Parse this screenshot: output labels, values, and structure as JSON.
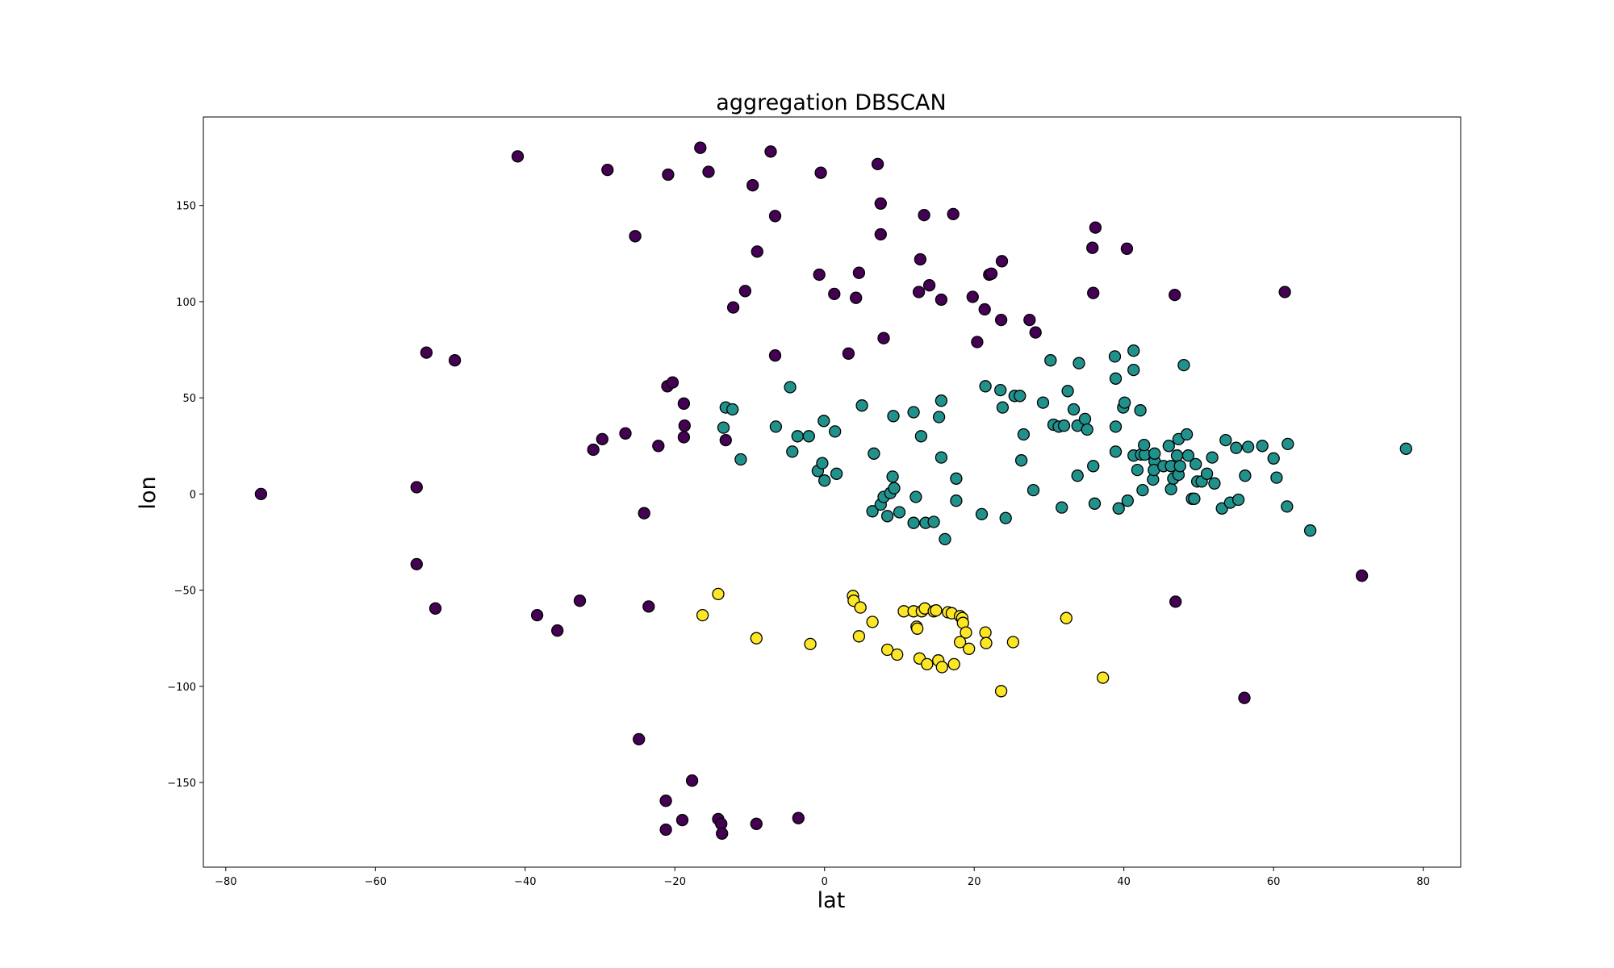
{
  "chart_data": {
    "type": "scatter",
    "title": "aggregation DBSCAN",
    "xlabel": "lat",
    "ylabel": "lon",
    "xlim": [
      -83,
      85
    ],
    "ylim": [
      -194,
      196
    ],
    "xticks": [
      -80,
      -60,
      -40,
      -20,
      0,
      20,
      40,
      60,
      80
    ],
    "yticks": [
      -150,
      -100,
      -50,
      0,
      50,
      100,
      150
    ],
    "grid": false,
    "legend": "none",
    "series": [
      {
        "color": "#440154",
        "points": [
          [
            -75.3,
            0
          ],
          [
            -54.5,
            3.5
          ],
          [
            -54.5,
            -36.5
          ],
          [
            -53.2,
            73.5
          ],
          [
            -52,
            -59.5
          ],
          [
            -49.4,
            69.5
          ],
          [
            -41,
            175.5
          ],
          [
            -38.4,
            -63
          ],
          [
            -35.7,
            -71
          ],
          [
            -32.7,
            -55.5
          ],
          [
            -30.9,
            23
          ],
          [
            -29.7,
            28.5
          ],
          [
            -29,
            168.5
          ],
          [
            -26.6,
            31.5
          ],
          [
            -25.3,
            134
          ],
          [
            -24.8,
            -127.5
          ],
          [
            -24.1,
            -10
          ],
          [
            -23.5,
            -58.5
          ],
          [
            -22.2,
            25
          ],
          [
            -21.2,
            -174.5
          ],
          [
            -21.2,
            -159.5
          ],
          [
            -21,
            56
          ],
          [
            -20.9,
            166
          ],
          [
            -20.3,
            58
          ],
          [
            -19,
            -169.5
          ],
          [
            -18.8,
            47
          ],
          [
            -18.8,
            29.5
          ],
          [
            -18.7,
            35.5
          ],
          [
            -17.7,
            -149
          ],
          [
            -16.6,
            180
          ],
          [
            -15.5,
            167.5
          ],
          [
            -14.2,
            -169
          ],
          [
            -13.8,
            -171.5
          ],
          [
            -13.7,
            -176.5
          ],
          [
            -13.2,
            28
          ],
          [
            -12.2,
            97
          ],
          [
            -10.6,
            105.5
          ],
          [
            -9.6,
            160.5
          ],
          [
            -9,
            126
          ],
          [
            -9.1,
            -171.5
          ],
          [
            -7.2,
            178
          ],
          [
            -6.6,
            144.5
          ],
          [
            -6.6,
            72
          ],
          [
            -3.5,
            -168.5
          ],
          [
            -0.7,
            114
          ],
          [
            -0.5,
            167
          ],
          [
            1.3,
            104
          ],
          [
            3.2,
            73
          ],
          [
            4.2,
            102
          ],
          [
            4.6,
            115
          ],
          [
            7.1,
            171.5
          ],
          [
            7.5,
            151
          ],
          [
            7.5,
            135
          ],
          [
            7.9,
            81
          ],
          [
            12.6,
            105
          ],
          [
            12.8,
            122
          ],
          [
            13.3,
            145
          ],
          [
            14,
            108.5
          ],
          [
            15.6,
            101
          ],
          [
            17.2,
            145.5
          ],
          [
            19.8,
            102.5
          ],
          [
            20.4,
            79
          ],
          [
            21.4,
            96
          ],
          [
            22,
            114
          ],
          [
            22.3,
            114.5
          ],
          [
            23.6,
            90.5
          ],
          [
            23.7,
            121
          ],
          [
            27.4,
            90.5
          ],
          [
            28.2,
            84
          ],
          [
            35.8,
            128
          ],
          [
            35.9,
            104.5
          ],
          [
            36.2,
            138.5
          ],
          [
            40.4,
            127.5
          ],
          [
            46.8,
            103.5
          ],
          [
            46.9,
            -56
          ],
          [
            56.1,
            -106
          ],
          [
            61.5,
            105
          ],
          [
            71.8,
            -42.5
          ]
        ]
      },
      {
        "color": "#21918c",
        "points": [
          [
            -13.2,
            45
          ],
          [
            -12.3,
            44
          ],
          [
            -13.5,
            34.5
          ],
          [
            -11.2,
            18
          ],
          [
            -6.5,
            35
          ],
          [
            -4.6,
            55.5
          ],
          [
            -4.3,
            22
          ],
          [
            -3.6,
            30
          ],
          [
            -2.1,
            30
          ],
          [
            -0.9,
            12
          ],
          [
            -0.3,
            16
          ],
          [
            0,
            7
          ],
          [
            -0.1,
            38
          ],
          [
            1.4,
            32.5
          ],
          [
            1.6,
            10.5
          ],
          [
            5,
            46
          ],
          [
            6.4,
            -9
          ],
          [
            6.6,
            21
          ],
          [
            7.5,
            -5.5
          ],
          [
            7.9,
            -1.5
          ],
          [
            8.4,
            -11.5
          ],
          [
            8.8,
            0.5
          ],
          [
            9.1,
            9
          ],
          [
            9.3,
            3
          ],
          [
            9.2,
            40.5
          ],
          [
            10,
            -9.5
          ],
          [
            11.9,
            -15
          ],
          [
            11.9,
            42.5
          ],
          [
            12.2,
            -1.5
          ],
          [
            12.9,
            30
          ],
          [
            13.5,
            -15
          ],
          [
            14.6,
            -14.5
          ],
          [
            15.3,
            40
          ],
          [
            15.6,
            48.5
          ],
          [
            15.6,
            19
          ],
          [
            16.1,
            -23.5
          ],
          [
            17.6,
            8
          ],
          [
            17.6,
            -3.5
          ],
          [
            21,
            -10.5
          ],
          [
            21.5,
            56
          ],
          [
            23.5,
            54
          ],
          [
            23.8,
            45
          ],
          [
            24.2,
            -12.5
          ],
          [
            25.4,
            51
          ],
          [
            26.1,
            51
          ],
          [
            26.3,
            17.5
          ],
          [
            26.6,
            31
          ],
          [
            27.9,
            2
          ],
          [
            29.2,
            47.5
          ],
          [
            30.2,
            69.5
          ],
          [
            30.6,
            36
          ],
          [
            31.3,
            35
          ],
          [
            31.7,
            -7
          ],
          [
            32,
            35.5
          ],
          [
            32.5,
            53.5
          ],
          [
            33.3,
            44
          ],
          [
            33.8,
            9.5
          ],
          [
            33.8,
            35.5
          ],
          [
            34,
            68
          ],
          [
            34.8,
            39
          ],
          [
            35.1,
            33.5
          ],
          [
            35.9,
            14.5
          ],
          [
            36.1,
            -5
          ],
          [
            38.8,
            71.5
          ],
          [
            38.9,
            60
          ],
          [
            38.9,
            35
          ],
          [
            38.9,
            22
          ],
          [
            39.3,
            -7.5
          ],
          [
            39.9,
            45
          ],
          [
            40.1,
            47.5
          ],
          [
            40.5,
            -3.5
          ],
          [
            41.3,
            74.5
          ],
          [
            41.3,
            20
          ],
          [
            41.3,
            64.5
          ],
          [
            41.8,
            12.5
          ],
          [
            42.2,
            43.5
          ],
          [
            42.3,
            20.5
          ],
          [
            42.5,
            2
          ],
          [
            42.8,
            20.5
          ],
          [
            42.7,
            25.5
          ],
          [
            43.9,
            7.5
          ],
          [
            44.1,
            17
          ],
          [
            44,
            12.5
          ],
          [
            44.1,
            21
          ],
          [
            45.3,
            14.5
          ],
          [
            46,
            25
          ],
          [
            46.3,
            14.5
          ],
          [
            46.3,
            2.5
          ],
          [
            46.6,
            8
          ],
          [
            47.1,
            20
          ],
          [
            47.3,
            10
          ],
          [
            47.3,
            28.5
          ],
          [
            47.5,
            14.5
          ],
          [
            48,
            67
          ],
          [
            48.4,
            31
          ],
          [
            48.6,
            20
          ],
          [
            49.1,
            -2.5
          ],
          [
            49.4,
            -2.5
          ],
          [
            49.6,
            15.5
          ],
          [
            49.8,
            6.5
          ],
          [
            50.4,
            6.5
          ],
          [
            51.1,
            10.5
          ],
          [
            51.8,
            19
          ],
          [
            52.1,
            5.5
          ],
          [
            53.1,
            -7.5
          ],
          [
            53.6,
            28
          ],
          [
            54.2,
            -4.5
          ],
          [
            55,
            24
          ],
          [
            55.3,
            -3
          ],
          [
            56.2,
            9.5
          ],
          [
            56.6,
            24.5
          ],
          [
            58.5,
            25
          ],
          [
            60,
            18.5
          ],
          [
            60.4,
            8.5
          ],
          [
            61.8,
            -6.5
          ],
          [
            61.9,
            26
          ],
          [
            64.9,
            -19
          ],
          [
            77.7,
            23.5
          ]
        ]
      },
      {
        "color": "#fde725",
        "points": [
          [
            -16.3,
            -63
          ],
          [
            -14.2,
            -52
          ],
          [
            -9.1,
            -75
          ],
          [
            -1.9,
            -78
          ],
          [
            3.8,
            -53
          ],
          [
            3.9,
            -55.5
          ],
          [
            4.6,
            -74
          ],
          [
            4.8,
            -59
          ],
          [
            6.4,
            -66.5
          ],
          [
            8.4,
            -81
          ],
          [
            9.7,
            -83.5
          ],
          [
            10.6,
            -61
          ],
          [
            11.9,
            -61
          ],
          [
            12.3,
            -69
          ],
          [
            12.4,
            -70
          ],
          [
            12.7,
            -85.5
          ],
          [
            13,
            -61
          ],
          [
            13.4,
            -59.5
          ],
          [
            13.7,
            -88.5
          ],
          [
            14.6,
            -61
          ],
          [
            14.9,
            -60.5
          ],
          [
            15.2,
            -86.5
          ],
          [
            15.7,
            -90
          ],
          [
            16.5,
            -61.5
          ],
          [
            17,
            -62
          ],
          [
            17.3,
            -88.5
          ],
          [
            18.1,
            -63.5
          ],
          [
            18.1,
            -77
          ],
          [
            18.4,
            -64.5
          ],
          [
            18.5,
            -67
          ],
          [
            18.9,
            -72
          ],
          [
            19.3,
            -80.5
          ],
          [
            21.5,
            -72
          ],
          [
            21.6,
            -77.5
          ],
          [
            23.6,
            -102.5
          ],
          [
            25.2,
            -77
          ],
          [
            32.3,
            -64.5
          ],
          [
            37.2,
            -95.5
          ]
        ]
      }
    ]
  }
}
